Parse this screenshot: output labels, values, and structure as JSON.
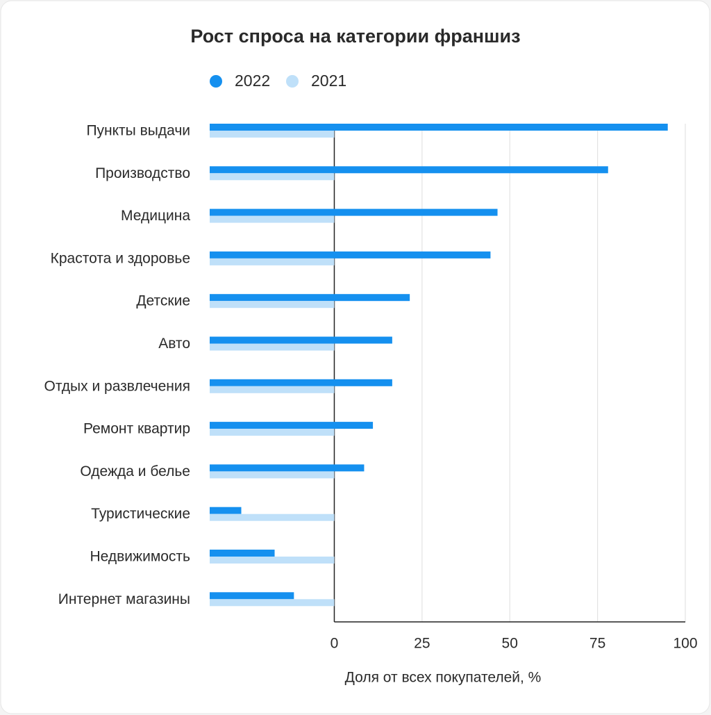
{
  "chart_data": {
    "type": "bar",
    "orientation": "horizontal",
    "title": "Рост спроса на категории франшиз",
    "x_label": "Доля от всех покупателей, %",
    "categories": [
      "Пункты выдачи",
      "Производство",
      "Медицина",
      "Крастота и здоровье",
      "Детские",
      "Авто",
      "Отдых и развлечения",
      "Ремонт квартир",
      "Одежда и белье",
      "Туристические",
      "Недвижимость",
      "Интернет магазины"
    ],
    "series": [
      {
        "name": "2022",
        "color": "#1590ef",
        "values": [
          95,
          78,
          46.5,
          44.5,
          21.5,
          16.5,
          16.5,
          11,
          8.5,
          -26.5,
          -17,
          -11.5
        ]
      },
      {
        "name": "2021",
        "color": "#bfe0f9",
        "values": [
          0,
          0,
          0,
          0,
          0,
          0,
          0,
          0,
          0,
          0,
          0,
          0
        ]
      }
    ],
    "xlim": [
      -35.5,
      100
    ],
    "xticks": [
      0,
      25,
      50,
      75,
      100
    ],
    "grid": true,
    "legend": "top"
  }
}
